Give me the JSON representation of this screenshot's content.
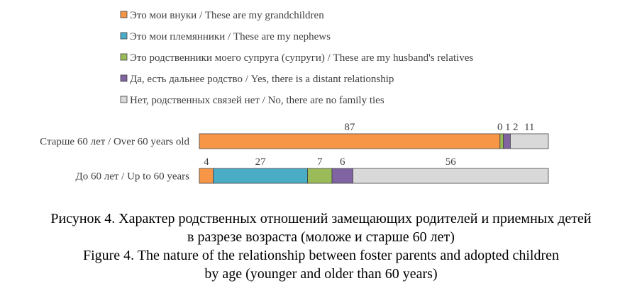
{
  "chart_data": {
    "type": "bar",
    "stacked": true,
    "orientation": "horizontal",
    "categories": [
      "Старше 60 лет / Over 60 years old",
      "До 60 лет / Up to 60 years"
    ],
    "series": [
      {
        "name": "Это мои внуки / These are my grandchildren",
        "color": "#F79646",
        "values": [
          87,
          4
        ]
      },
      {
        "name": "Это мои племянники / These are my nephews",
        "color": "#4BACC6",
        "values": [
          0,
          27
        ]
      },
      {
        "name": "Это родственники моего супруга (супруги) / These are my husband's relatives",
        "color": "#9BBB59",
        "values": [
          1,
          7
        ]
      },
      {
        "name": "Да, есть дальнее родство / Yes, there is a distant relationship",
        "color": "#8064A2",
        "values": [
          2,
          6
        ]
      },
      {
        "name": "Нет, родственных связей нет / No, there are no family ties",
        "color": "#D9D9D9",
        "values": [
          11,
          56
        ]
      }
    ],
    "legend_position": "top-left",
    "grid": false
  },
  "caption": {
    "line1": "Рисунок 4. Характер родственных отношений замещающих родителей и приемных детей",
    "line2": "в разрезе возраста (моложе и старше 60 лет)",
    "line3": "Figure 4. The nature of the relationship between foster parents and adopted children",
    "line4": "by age (younger and older than 60 years)"
  }
}
